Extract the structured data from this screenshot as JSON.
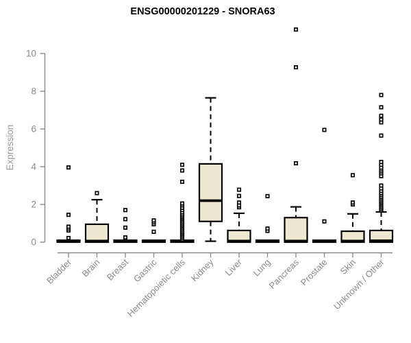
{
  "chart_data": {
    "type": "boxplot",
    "title": "ENSG00000201229 - SNORA63",
    "ylabel": "Expression",
    "ylim": [
      0,
      10
    ],
    "yticks": [
      0,
      2,
      4,
      6,
      8,
      10
    ],
    "grid": false,
    "legend": "none",
    "categories": [
      "Bladder",
      "Brain",
      "Breast",
      "Gastric",
      "Hematopoietic cells",
      "Kidney",
      "Liver",
      "Lung",
      "Pancreas",
      "Prostate",
      "Skin",
      "Unknown / Other"
    ],
    "colors": {
      "box_fill": "#EEE8D1",
      "box_stroke": "#000000",
      "axis": "#8a8a8a",
      "tick_label": "#8a8a8a",
      "axis_label": "#9a9a9a",
      "title": "#000000",
      "background": "#ffffff"
    },
    "series": [
      {
        "name": "Bladder",
        "q1": 0,
        "median": 0.05,
        "q3": 0.1,
        "whisker_low": 0,
        "whisker_high": 0.1,
        "outliers": [
          0.22,
          0.62,
          0.72,
          0.82,
          1.45,
          3.96
        ]
      },
      {
        "name": "Brain",
        "q1": 0,
        "median": 0.06,
        "q3": 0.95,
        "whisker_low": 0,
        "whisker_high": 2.25,
        "outliers": [
          2.6
        ]
      },
      {
        "name": "Breast",
        "q1": 0,
        "median": 0.05,
        "q3": 0.1,
        "whisker_low": 0,
        "whisker_high": 0.1,
        "outliers": [
          0.25,
          0.77,
          1.22,
          1.7
        ]
      },
      {
        "name": "Gastric",
        "q1": 0,
        "median": 0.05,
        "q3": 0.1,
        "whisker_low": 0,
        "whisker_high": 0.1,
        "outliers": [
          0.55,
          0.95,
          1.05,
          1.15
        ]
      },
      {
        "name": "Hematopoietic cells",
        "q1": 0,
        "median": 0.05,
        "q3": 0.1,
        "whisker_low": 0,
        "whisker_high": 0.1,
        "outliers": [
          0.12,
          0.2,
          0.28,
          0.36,
          0.44,
          0.52,
          0.6,
          0.68,
          0.76,
          0.84,
          0.92,
          1.0,
          1.08,
          1.16,
          1.24,
          1.32,
          1.4,
          1.48,
          1.58,
          1.7,
          1.82,
          1.95,
          2.05,
          3.2,
          3.8,
          4.1
        ]
      },
      {
        "name": "Kidney",
        "q1": 1.1,
        "median": 2.2,
        "q3": 4.15,
        "whisker_low": 0.05,
        "whisker_high": 7.65,
        "outliers": []
      },
      {
        "name": "Liver",
        "q1": 0,
        "median": 0.06,
        "q3": 0.62,
        "whisker_low": 0,
        "whisker_high": 1.53,
        "outliers": [
          1.85,
          1.95,
          2.1,
          2.45,
          2.78
        ]
      },
      {
        "name": "Lung",
        "q1": 0,
        "median": 0.05,
        "q3": 0.1,
        "whisker_low": 0,
        "whisker_high": 0.1,
        "outliers": [
          0.6,
          0.72,
          2.44
        ]
      },
      {
        "name": "Pancreas",
        "q1": 0,
        "median": 0.06,
        "q3": 1.3,
        "whisker_low": 0,
        "whisker_high": 1.87,
        "outliers": [
          4.18,
          9.27,
          11.27
        ]
      },
      {
        "name": "Prostate",
        "q1": 0,
        "median": 0.05,
        "q3": 0.1,
        "whisker_low": 0,
        "whisker_high": 0.1,
        "outliers": [
          1.1,
          5.95
        ]
      },
      {
        "name": "Skin",
        "q1": 0,
        "median": 0.06,
        "q3": 0.58,
        "whisker_low": 0,
        "whisker_high": 1.5,
        "outliers": [
          2.0,
          2.1,
          3.55
        ]
      },
      {
        "name": "Unknown / Other",
        "q1": 0,
        "median": 0.07,
        "q3": 0.62,
        "whisker_low": 0,
        "whisker_high": 1.6,
        "outliers": [
          1.68,
          1.76,
          1.84,
          1.92,
          2.0,
          2.08,
          2.16,
          2.24,
          2.32,
          2.4,
          2.5,
          2.6,
          2.72,
          2.85,
          3.0,
          3.5,
          3.65,
          3.75,
          3.85,
          3.95,
          4.1,
          4.25,
          5.65,
          6.35,
          6.5,
          6.7,
          7.15,
          7.8
        ]
      }
    ]
  }
}
